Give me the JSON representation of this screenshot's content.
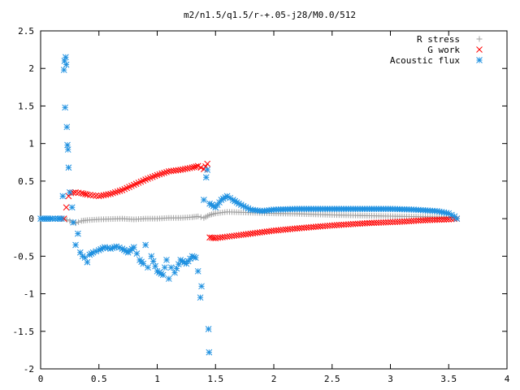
{
  "chart_data": {
    "type": "scatter",
    "title": "m2/n1.5/q1.5/r-+.05-j28/M0.0/512",
    "xlabel": "",
    "ylabel": "",
    "xlim": [
      0,
      4
    ],
    "ylim": [
      -2,
      2.5
    ],
    "grid": false,
    "legend_position": "top-right",
    "x_ticks": [
      "0",
      "0.5",
      "1",
      "1.5",
      "2",
      "2.5",
      "3",
      "3.5",
      "4"
    ],
    "y_ticks": [
      "2.5",
      "2",
      "1.5",
      "1",
      "0.5",
      "0",
      "-0.5",
      "-1",
      "-1.5",
      "-2"
    ],
    "series": [
      {
        "name": "R stress",
        "marker": "plus",
        "color": "#a0a0a0",
        "points": [
          [
            0.2,
            0.0
          ],
          [
            0.25,
            -0.03
          ],
          [
            0.3,
            -0.06
          ],
          [
            0.35,
            -0.03
          ],
          [
            0.4,
            -0.02
          ],
          [
            0.5,
            -0.01
          ],
          [
            0.6,
            -0.005
          ],
          [
            0.7,
            0.0
          ],
          [
            0.8,
            -0.01
          ],
          [
            0.9,
            0.0
          ],
          [
            1.0,
            0.0
          ],
          [
            1.1,
            0.01
          ],
          [
            1.2,
            0.01
          ],
          [
            1.3,
            0.02
          ],
          [
            1.35,
            0.03
          ],
          [
            1.4,
            0.01
          ],
          [
            1.45,
            0.05
          ],
          [
            1.5,
            0.07
          ],
          [
            1.6,
            0.09
          ],
          [
            1.8,
            0.08
          ],
          [
            2.0,
            0.07
          ],
          [
            2.2,
            0.065
          ],
          [
            2.5,
            0.05
          ],
          [
            2.8,
            0.04
          ],
          [
            3.1,
            0.03
          ],
          [
            3.3,
            0.025
          ],
          [
            3.5,
            0.02
          ],
          [
            3.57,
            0.005
          ]
        ]
      },
      {
        "name": "G work",
        "marker": "cross",
        "color": "#ff0000",
        "points": [
          [
            0.2,
            0.0
          ],
          [
            0.22,
            0.15
          ],
          [
            0.24,
            0.3
          ],
          [
            0.26,
            0.34
          ],
          [
            0.3,
            0.35
          ],
          [
            0.35,
            0.34
          ],
          [
            0.4,
            0.32
          ],
          [
            0.45,
            0.31
          ],
          [
            0.5,
            0.3
          ],
          [
            0.6,
            0.33
          ],
          [
            0.7,
            0.38
          ],
          [
            0.8,
            0.45
          ],
          [
            0.9,
            0.52
          ],
          [
            1.0,
            0.58
          ],
          [
            1.1,
            0.63
          ],
          [
            1.2,
            0.65
          ],
          [
            1.3,
            0.68
          ],
          [
            1.35,
            0.7
          ],
          [
            1.4,
            0.66
          ],
          [
            1.43,
            0.73
          ],
          [
            1.45,
            -0.25
          ],
          [
            1.5,
            -0.26
          ],
          [
            1.6,
            -0.24
          ],
          [
            1.8,
            -0.2
          ],
          [
            2.0,
            -0.16
          ],
          [
            2.2,
            -0.13
          ],
          [
            2.5,
            -0.09
          ],
          [
            2.8,
            -0.06
          ],
          [
            3.1,
            -0.04
          ],
          [
            3.3,
            -0.02
          ],
          [
            3.5,
            -0.01
          ],
          [
            3.57,
            0.0
          ]
        ]
      },
      {
        "name": "Acoustic flux",
        "marker": "star",
        "color": "#1e90e0",
        "points": [
          [
            0.0,
            0.0
          ],
          [
            0.05,
            0.0
          ],
          [
            0.1,
            0.0
          ],
          [
            0.15,
            0.0
          ],
          [
            0.18,
            0.0
          ],
          [
            0.19,
            0.3
          ],
          [
            0.2,
            1.98
          ],
          [
            0.205,
            2.1
          ],
          [
            0.21,
            1.48
          ],
          [
            0.215,
            2.15
          ],
          [
            0.22,
            2.05
          ],
          [
            0.225,
            1.22
          ],
          [
            0.23,
            0.98
          ],
          [
            0.235,
            0.92
          ],
          [
            0.24,
            0.68
          ],
          [
            0.25,
            0.35
          ],
          [
            0.27,
            0.15
          ],
          [
            0.28,
            -0.05
          ],
          [
            0.3,
            -0.35
          ],
          [
            0.32,
            -0.2
          ],
          [
            0.34,
            -0.45
          ],
          [
            0.36,
            -0.5
          ],
          [
            0.38,
            -0.52
          ],
          [
            0.4,
            -0.58
          ],
          [
            0.42,
            -0.48
          ],
          [
            0.45,
            -0.45
          ],
          [
            0.5,
            -0.42
          ],
          [
            0.55,
            -0.38
          ],
          [
            0.6,
            -0.4
          ],
          [
            0.65,
            -0.37
          ],
          [
            0.7,
            -0.4
          ],
          [
            0.75,
            -0.45
          ],
          [
            0.8,
            -0.38
          ],
          [
            0.85,
            -0.55
          ],
          [
            0.88,
            -0.6
          ],
          [
            0.9,
            -0.35
          ],
          [
            0.92,
            -0.65
          ],
          [
            0.95,
            -0.5
          ],
          [
            1.0,
            -0.7
          ],
          [
            1.05,
            -0.75
          ],
          [
            1.08,
            -0.55
          ],
          [
            1.1,
            -0.8
          ],
          [
            1.12,
            -0.65
          ],
          [
            1.15,
            -0.72
          ],
          [
            1.2,
            -0.55
          ],
          [
            1.25,
            -0.6
          ],
          [
            1.3,
            -0.5
          ],
          [
            1.33,
            -0.52
          ],
          [
            1.35,
            -0.7
          ],
          [
            1.37,
            -1.05
          ],
          [
            1.38,
            -0.9
          ],
          [
            1.4,
            0.25
          ],
          [
            1.42,
            0.55
          ],
          [
            1.43,
            0.65
          ],
          [
            1.44,
            -1.47
          ],
          [
            1.445,
            -1.78
          ],
          [
            1.45,
            0.2
          ],
          [
            1.5,
            0.15
          ],
          [
            1.55,
            0.25
          ],
          [
            1.6,
            0.3
          ],
          [
            1.65,
            0.25
          ],
          [
            1.7,
            0.2
          ],
          [
            1.8,
            0.12
          ],
          [
            1.9,
            0.1
          ],
          [
            2.0,
            0.12
          ],
          [
            2.2,
            0.13
          ],
          [
            2.5,
            0.13
          ],
          [
            2.8,
            0.13
          ],
          [
            3.0,
            0.13
          ],
          [
            3.2,
            0.12
          ],
          [
            3.4,
            0.1
          ],
          [
            3.5,
            0.07
          ],
          [
            3.55,
            0.03
          ],
          [
            3.57,
            0.0
          ]
        ]
      }
    ]
  }
}
